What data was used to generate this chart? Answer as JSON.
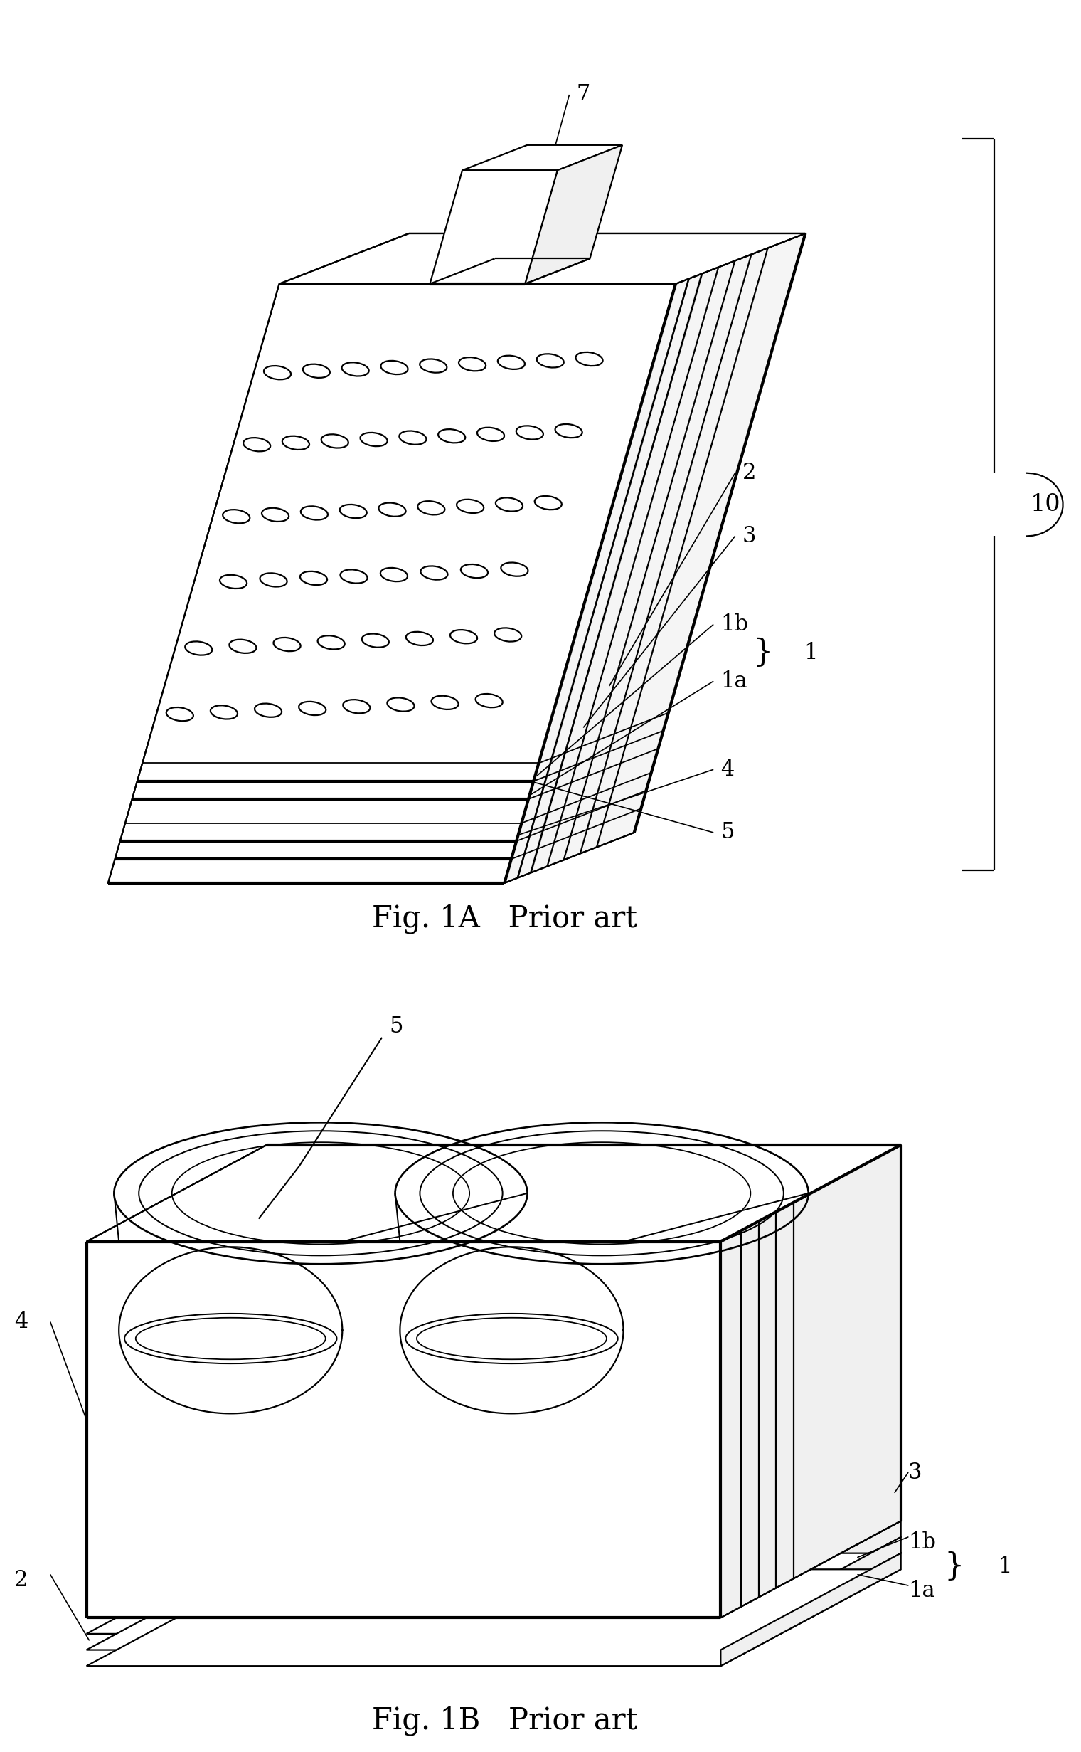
{
  "fig_title_A": "Fig. 1A   Prior art",
  "fig_title_B": "Fig. 1B   Prior art",
  "bg_color": "#ffffff",
  "lc": "#000000",
  "lw": 1.6,
  "hlw": 3.0,
  "fs": 22,
  "tfs": 30
}
